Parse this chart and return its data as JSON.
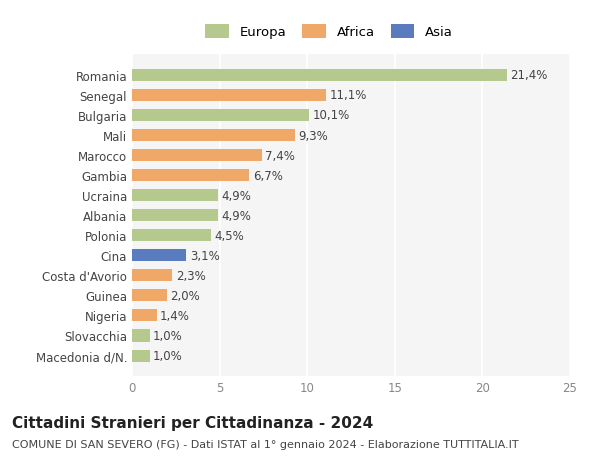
{
  "countries": [
    "Romania",
    "Senegal",
    "Bulgaria",
    "Mali",
    "Marocco",
    "Gambia",
    "Ucraina",
    "Albania",
    "Polonia",
    "Cina",
    "Costa d'Avorio",
    "Guinea",
    "Nigeria",
    "Slovacchia",
    "Macedonia d/N."
  ],
  "values": [
    21.4,
    11.1,
    10.1,
    9.3,
    7.4,
    6.7,
    4.9,
    4.9,
    4.5,
    3.1,
    2.3,
    2.0,
    1.4,
    1.0,
    1.0
  ],
  "labels": [
    "21,4%",
    "11,1%",
    "10,1%",
    "9,3%",
    "7,4%",
    "6,7%",
    "4,9%",
    "4,9%",
    "4,5%",
    "3,1%",
    "2,3%",
    "2,0%",
    "1,4%",
    "1,0%",
    "1,0%"
  ],
  "continents": [
    "Europa",
    "Africa",
    "Europa",
    "Africa",
    "Africa",
    "Africa",
    "Europa",
    "Europa",
    "Europa",
    "Asia",
    "Africa",
    "Africa",
    "Africa",
    "Europa",
    "Europa"
  ],
  "colors": {
    "Europa": "#b5c98e",
    "Africa": "#f0a868",
    "Asia": "#5b7bbf"
  },
  "title": "Cittadini Stranieri per Cittadinanza - 2024",
  "subtitle": "COMUNE DI SAN SEVERO (FG) - Dati ISTAT al 1° gennaio 2024 - Elaborazione TUTTITALIA.IT",
  "xlim": [
    0,
    25
  ],
  "xticks": [
    0,
    5,
    10,
    15,
    20,
    25
  ],
  "background_color": "#ffffff",
  "plot_bg_color": "#f5f5f5",
  "grid_color": "#ffffff",
  "bar_height": 0.6,
  "label_fontsize": 8.5,
  "tick_fontsize": 8.5,
  "title_fontsize": 11,
  "subtitle_fontsize": 8
}
